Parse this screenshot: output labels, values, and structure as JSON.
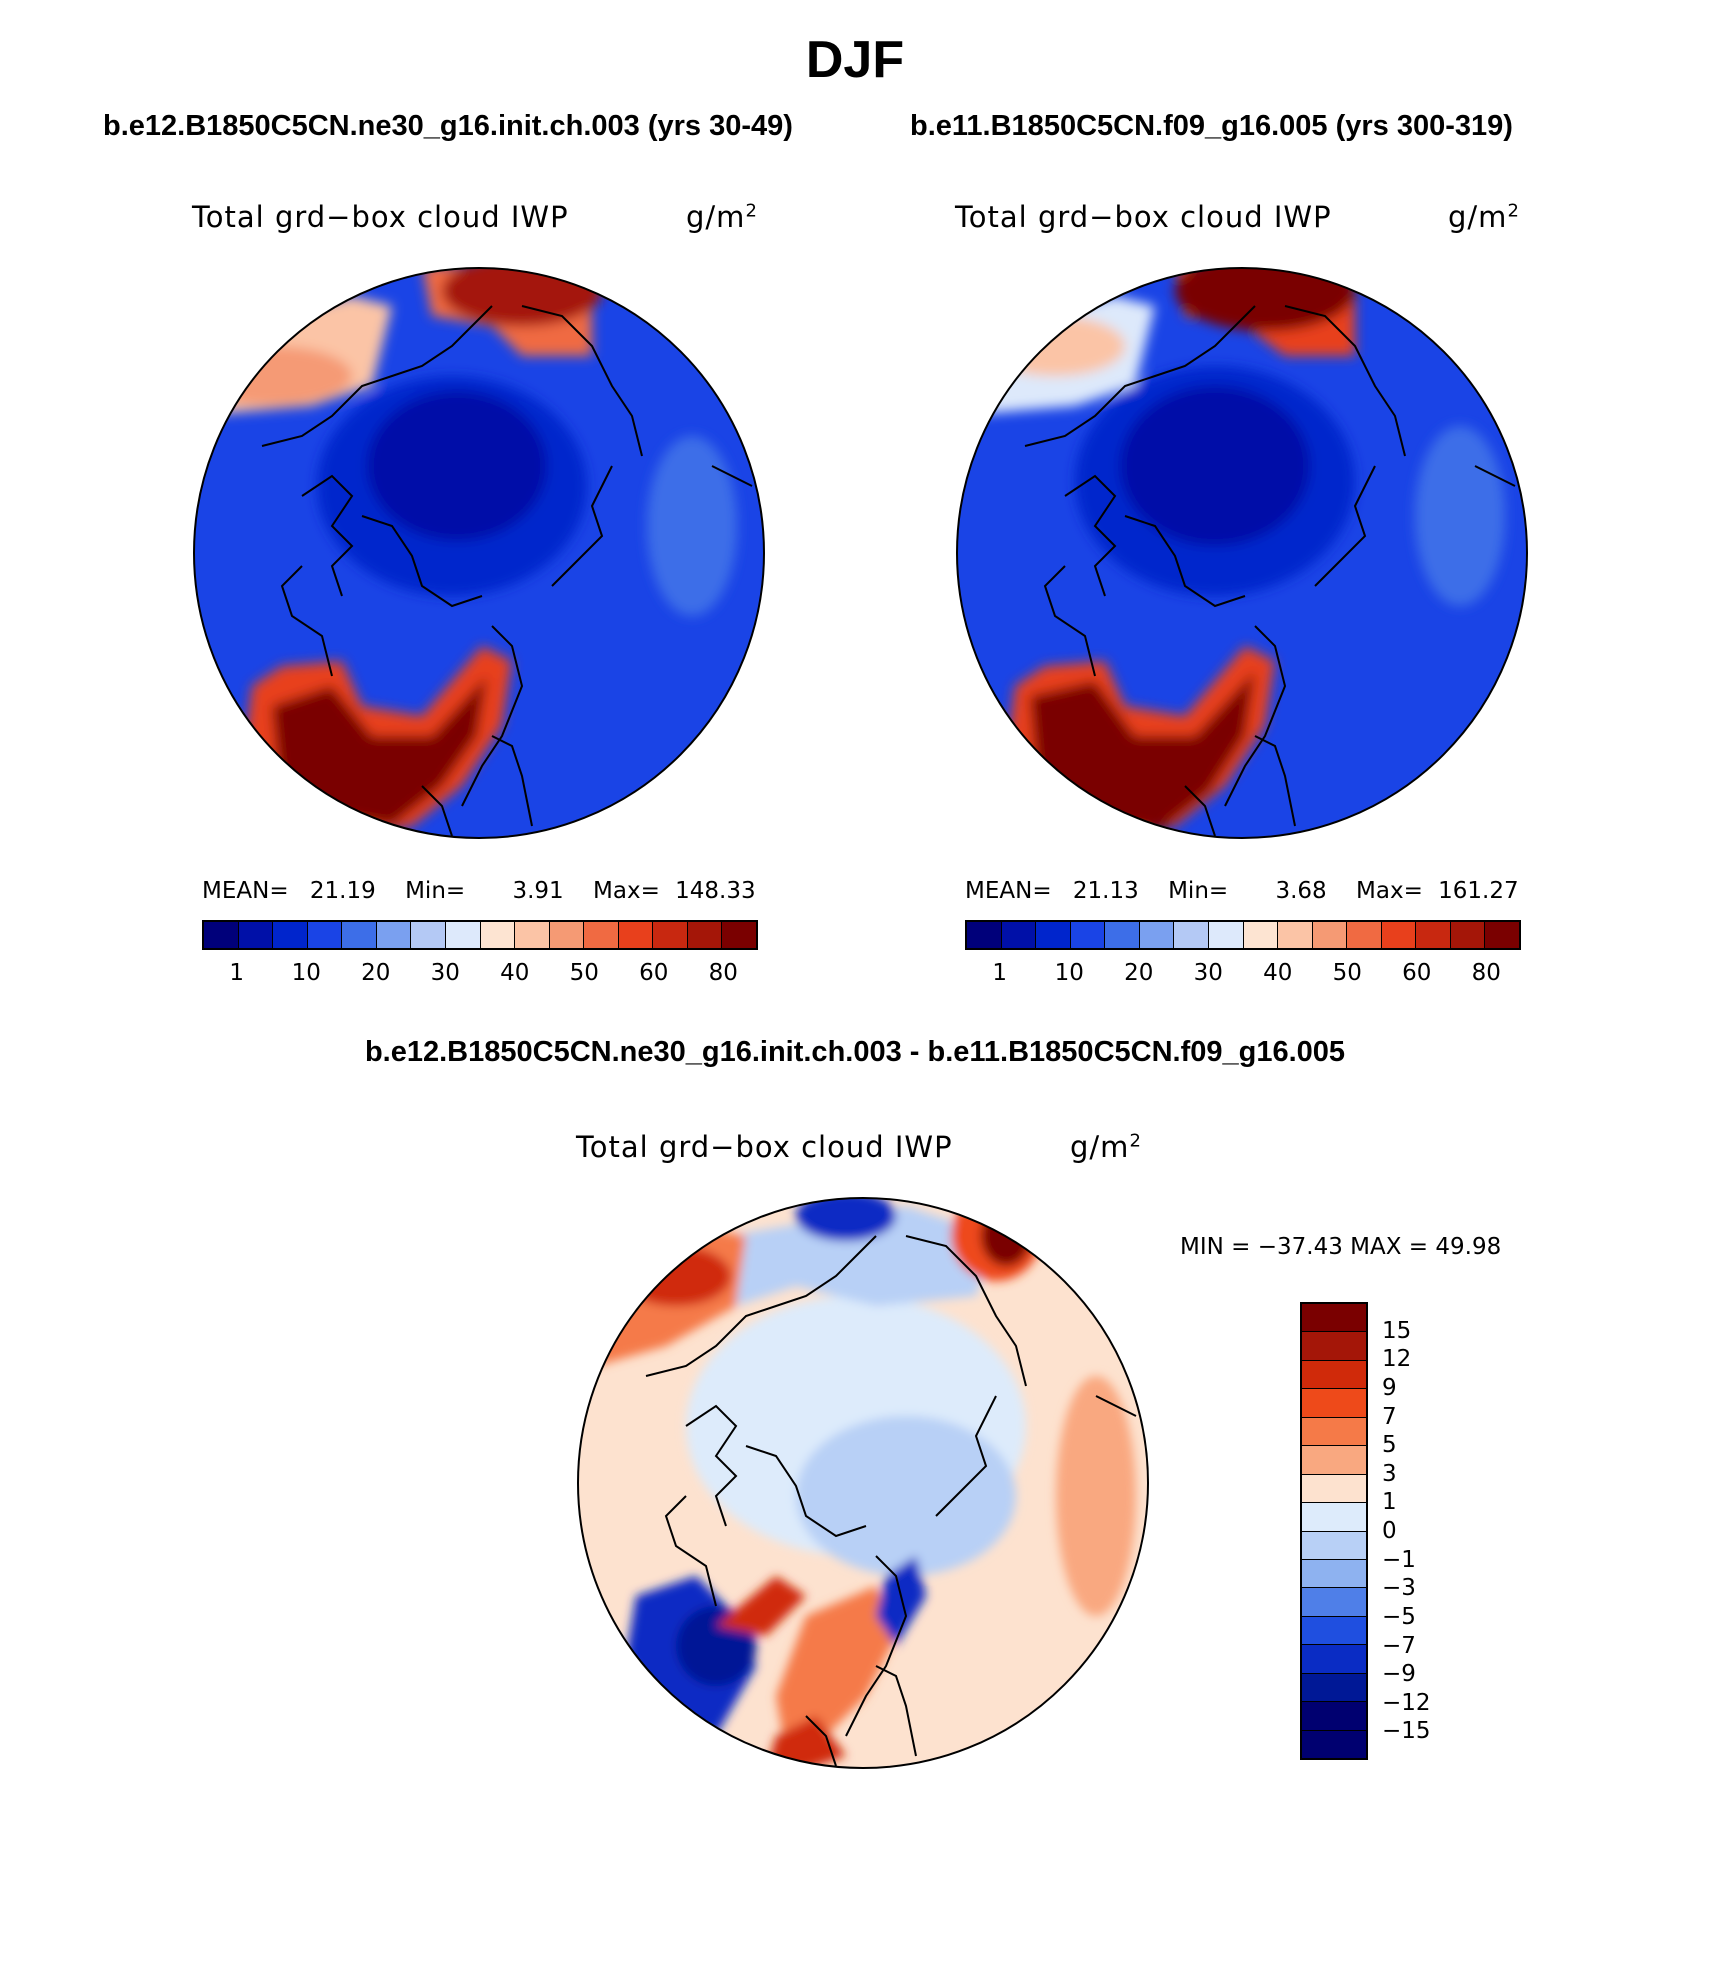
{
  "figure": {
    "season": "DJF",
    "case1_title": "b.e12.B1850C5CN.ne30_g16.init.ch.003 (yrs 30-49)",
    "case2_title": "b.e11.B1850C5CN.f09_g16.005 (yrs 300-319)",
    "diff_title": "b.e12.B1850C5CN.ne30_g16.init.ch.003 - b.e11.B1850C5CN.f09_g16.005"
  },
  "panels": {
    "left": {
      "variable": "Total grd−box cloud IWP",
      "units": "g/m",
      "units_sup": "2",
      "mean_label": "MEAN=",
      "mean": "21.19",
      "min_label": "Min=",
      "min": "3.91",
      "max_label": "Max=",
      "max": "148.33"
    },
    "right": {
      "variable": "Total grd−box cloud IWP",
      "units": "g/m",
      "units_sup": "2",
      "mean_label": "MEAN=",
      "mean": "21.13",
      "min_label": "Min=",
      "min": "3.68",
      "max_label": "Max=",
      "max": "161.27"
    },
    "diff": {
      "variable": "Total grd−box cloud IWP",
      "units": "g/m",
      "units_sup": "2",
      "minmax": "MIN = −37.43  MAX =   49.98"
    }
  },
  "colorbars": {
    "field": {
      "colors": [
        "#00007a",
        "#0010a8",
        "#0025cc",
        "#1a44e6",
        "#3d6ee8",
        "#7aa0f0",
        "#b4c9f5",
        "#dde9fb",
        "#fde4d2",
        "#fbc4a6",
        "#f59a74",
        "#f06a42",
        "#e8401c",
        "#c82810",
        "#a41608",
        "#7a0000"
      ],
      "tick_labels": [
        "1",
        "10",
        "20",
        "30",
        "40",
        "50",
        "60",
        "80"
      ]
    },
    "diff": {
      "colors": [
        "#7a0000",
        "#a41608",
        "#d02a0a",
        "#ee4a1a",
        "#f57a48",
        "#f9a880",
        "#fde2cf",
        "#ddebfb",
        "#b8d0f6",
        "#8eb2f0",
        "#4f7fe8",
        "#1f4fe0",
        "#0a2cc4",
        "#001896",
        "#000070"
      ],
      "tick_labels": [
        "15",
        "12",
        "9",
        "7",
        "5",
        "3",
        "1",
        "0",
        "−1",
        "−3",
        "−5",
        "−7",
        "−9",
        "−12",
        "−15"
      ]
    }
  }
}
